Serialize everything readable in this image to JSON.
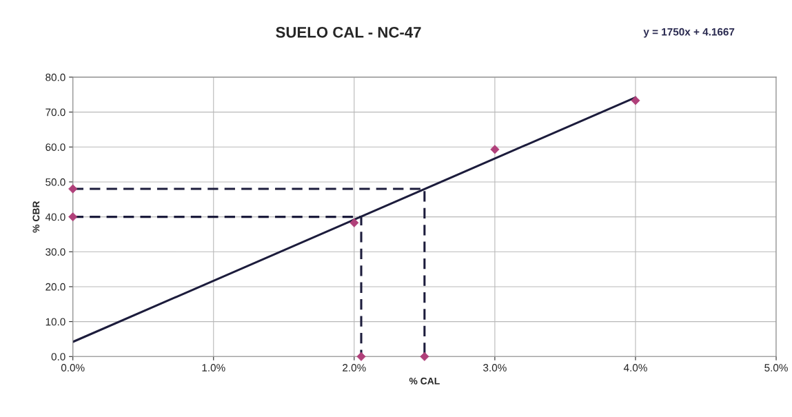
{
  "chart_data": {
    "type": "scatter",
    "title": "SUELO CAL - NC-47",
    "xlabel": "% CAL",
    "ylabel": "% CBR",
    "annotations": [
      "y = 1750x + 4.1667"
    ],
    "series": [
      {
        "type": "line",
        "color": "#1c1c3c",
        "x": [
          0,
          0.04
        ],
        "values": [
          4.2,
          74.2
        ],
        "line_style": "solid",
        "marker": "none"
      },
      {
        "type": "line",
        "color": "#1c1c3c",
        "x": [
          0,
          0.025,
          0.025
        ],
        "values": [
          48,
          48,
          0
        ],
        "line_style": "dashed",
        "marker": "none"
      },
      {
        "type": "line",
        "color": "#1c1c3c",
        "x": [
          0,
          0.0205,
          0.0205
        ],
        "values": [
          40,
          40,
          0
        ],
        "line_style": "dashed",
        "marker": "none"
      },
      {
        "color": "#b0407a",
        "x": [
          0,
          0,
          0.0205,
          0.025,
          0.02,
          0.03,
          0.04
        ],
        "values": [
          48,
          40,
          0,
          0,
          38.3,
          59.3,
          73.3
        ],
        "marker": "diamond"
      }
    ],
    "xlim": [
      0,
      0.05
    ],
    "xticks": [
      {
        "value": 0,
        "label": "0.0%"
      },
      {
        "value": 0.01,
        "label": "1.0%"
      },
      {
        "value": 0.02,
        "label": "2.0%"
      },
      {
        "value": 0.03,
        "label": "3.0%"
      },
      {
        "value": 0.04,
        "label": "4.0%"
      },
      {
        "value": 0.05,
        "label": "5.0%"
      }
    ],
    "ylim": [
      0,
      80
    ],
    "yticks": [
      {
        "value": 0,
        "label": "0.0"
      },
      {
        "value": 10,
        "label": "10.0"
      },
      {
        "value": 20,
        "label": "20.0"
      },
      {
        "value": 30,
        "label": "30.0"
      },
      {
        "value": 40,
        "label": "40.0"
      },
      {
        "value": 50,
        "label": "50.0"
      },
      {
        "value": 60,
        "label": "60.0"
      },
      {
        "value": 70,
        "label": "70.0"
      },
      {
        "value": 80,
        "label": "80.0"
      }
    ],
    "grid": true,
    "legend": false
  }
}
